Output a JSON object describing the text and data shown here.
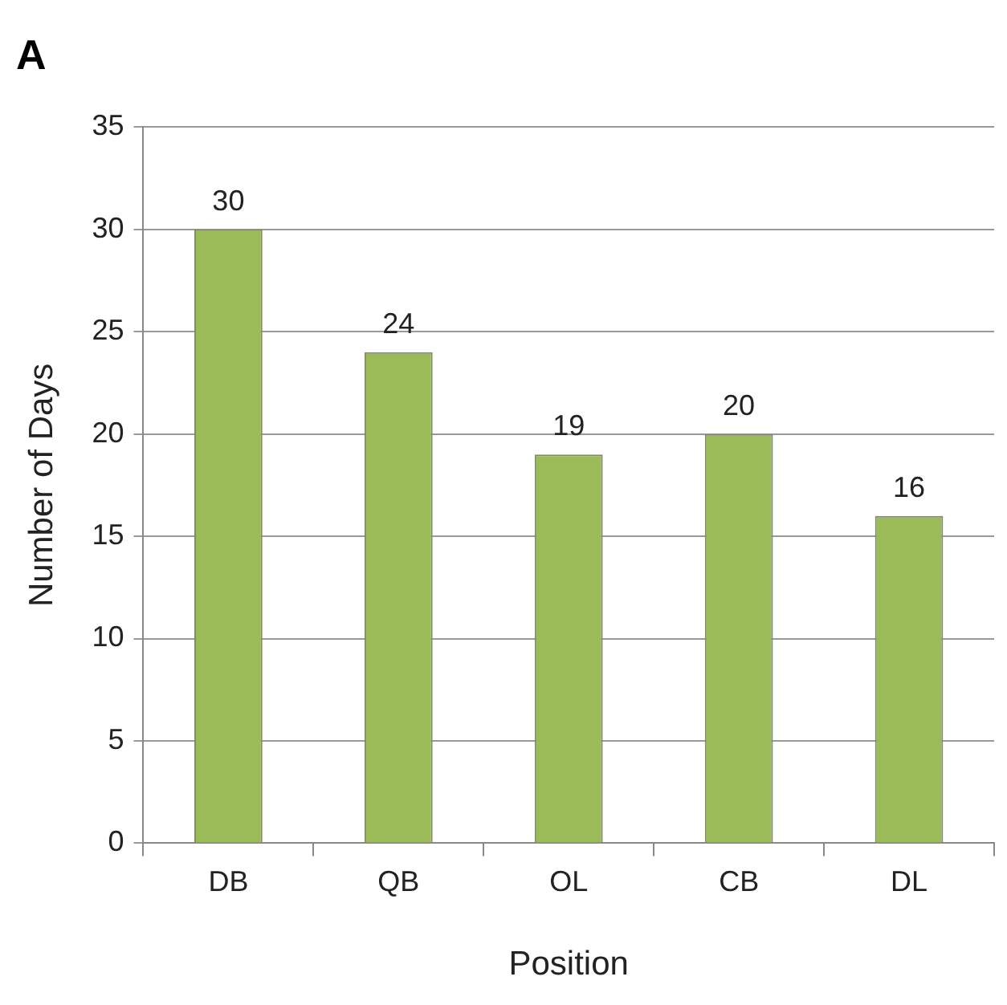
{
  "chart_data": {
    "type": "bar",
    "title": "A",
    "xlabel": "Position",
    "ylabel": "Number of Days",
    "categories": [
      "DB",
      "QB",
      "OL",
      "CB",
      "DL"
    ],
    "values": [
      30,
      24,
      19,
      20,
      16
    ],
    "color": "#9bbb59",
    "ylim": [
      0,
      35
    ],
    "yticks": [
      0,
      5,
      10,
      15,
      20,
      25,
      30,
      35
    ],
    "grid": "y",
    "data_labels": true,
    "legend": false
  }
}
